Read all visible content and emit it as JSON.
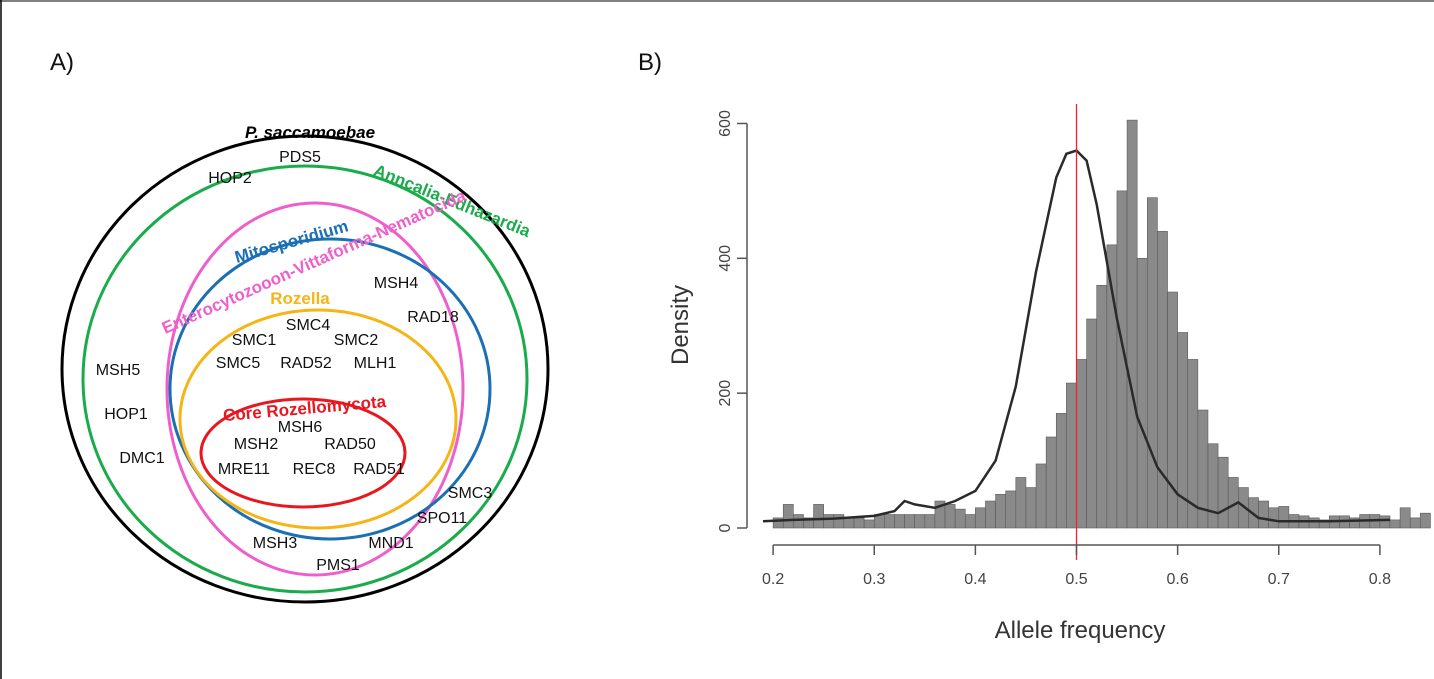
{
  "figure": {
    "colors": {
      "psac": "#000000",
      "anncalia": "#1aab4b",
      "entero": "#ee5fcb",
      "mito": "#1a6fb5",
      "rozella": "#f5b516",
      "core": "#e8171f",
      "bar_fill": "#8a8a8a",
      "density_line": "#2a2a2a",
      "ref_line": "#e8282d"
    }
  },
  "panelA": {
    "label": "A)",
    "sets": {
      "psac": "P. saccamoebae",
      "anncalia": "Anncalia-Edhazardia",
      "entero": "Enterocytozooon-Vittaforma-Nematocida",
      "mito": "Mitosporidium",
      "rozella": "Rozella",
      "core": "Core Rozellomycota"
    },
    "genes": {
      "psac": [
        "PDS5",
        "HOP2",
        "MSH5",
        "HOP1",
        "DMC1"
      ],
      "mito": [
        "MSH4",
        "RAD18"
      ],
      "rozella": [
        "SMC4",
        "SMC1",
        "SMC2",
        "SMC5",
        "RAD52",
        "MLH1"
      ],
      "core": [
        "MSH6",
        "MSH2",
        "RAD50",
        "MRE11",
        "REC8",
        "RAD51"
      ],
      "entero": [
        "SMC3",
        "SPO11",
        "MND1",
        "MSH3",
        "PMS1"
      ]
    }
  },
  "panelB": {
    "label": "B)",
    "chart_data": {
      "type": "bar",
      "xlabel": "Allele frequency",
      "ylabel": "Density",
      "xlim": [
        0.19,
        0.81
      ],
      "ylim": [
        0,
        620
      ],
      "xticks": [
        "0.2",
        "0.3",
        "0.4",
        "0.5",
        "0.6",
        "0.7",
        "0.8"
      ],
      "yticks": [
        "0",
        "200",
        "400",
        "600"
      ],
      "bin_width": 0.01,
      "bin_start": 0.2,
      "values": [
        15,
        35,
        20,
        15,
        35,
        20,
        20,
        15,
        15,
        12,
        20,
        20,
        20,
        20,
        20,
        20,
        40,
        35,
        28,
        20,
        30,
        40,
        50,
        55,
        75,
        60,
        95,
        135,
        170,
        215,
        250,
        310,
        360,
        420,
        500,
        605,
        400,
        490,
        440,
        350,
        290,
        250,
        175,
        125,
        105,
        75,
        60,
        45,
        40,
        30,
        32,
        20,
        18,
        15,
        12,
        18,
        18,
        15,
        20,
        20,
        18,
        12,
        30,
        15,
        22
      ],
      "density_x": [
        0.19,
        0.22,
        0.26,
        0.3,
        0.32,
        0.33,
        0.34,
        0.36,
        0.38,
        0.4,
        0.42,
        0.44,
        0.46,
        0.48,
        0.49,
        0.5,
        0.51,
        0.52,
        0.54,
        0.56,
        0.58,
        0.6,
        0.62,
        0.64,
        0.66,
        0.68,
        0.7,
        0.75,
        0.81
      ],
      "density_y": [
        10,
        12,
        14,
        18,
        25,
        40,
        35,
        30,
        40,
        55,
        100,
        210,
        380,
        520,
        555,
        560,
        545,
        480,
        310,
        165,
        90,
        50,
        30,
        22,
        38,
        15,
        10,
        10,
        12
      ],
      "ref_line_x": 0.5
    }
  }
}
